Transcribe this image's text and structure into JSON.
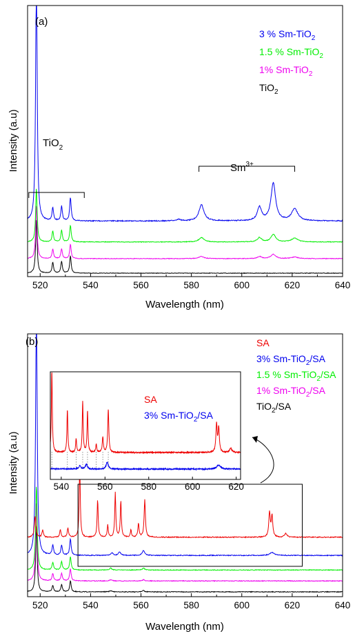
{
  "panels": [
    {
      "panel_label": "(a)",
      "legend": [
        {
          "base": "3 % Sm-TiO",
          "sub": "2",
          "color": "#0000ee"
        },
        {
          "base": "1.5 % Sm-TiO",
          "sub": "2",
          "color": "#00ee00"
        },
        {
          "base": "1% Sm-TiO",
          "sub": "2",
          "color": "#ee00ee"
        },
        {
          "base": "TiO",
          "sub": "2",
          "color": "#000000"
        }
      ],
      "annotations": {
        "tio2": {
          "base": "TiO",
          "sub": "2"
        },
        "sm": {
          "base": "Sm",
          "sup": "3+"
        }
      },
      "bracket_ranges": {
        "tio2": [
          515.5,
          537.5
        ],
        "sm": [
          583,
          621
        ]
      }
    },
    {
      "panel_label": "(b)",
      "legend": [
        {
          "base": "SA",
          "sub": "",
          "suffix": "",
          "color": "#ee0000"
        },
        {
          "base": "3% Sm-TiO",
          "sub": "2",
          "suffix": "/SA",
          "color": "#0000ee"
        },
        {
          "base": "1.5 % Sm-TiO",
          "sub": "2",
          "suffix": "/SA",
          "color": "#00ee00"
        },
        {
          "base": "1% Sm-TiO",
          "sub": "2",
          "suffix": "/SA",
          "color": "#ee00ee"
        },
        {
          "base": "TiO",
          "sub": "2",
          "suffix": "/SA",
          "color": "#000000"
        }
      ],
      "inset": {
        "legend": [
          {
            "base": "SA",
            "sub": "",
            "suffix": "",
            "color": "#ee0000"
          },
          {
            "base": "3% Sm-TiO",
            "sub": "2",
            "suffix": "/SA",
            "color": "#0000ee"
          }
        ],
        "xlim": [
          535,
          622
        ],
        "xticks": [
          540,
          560,
          580,
          600,
          620
        ]
      },
      "zoom_box_range": [
        535,
        624
      ]
    }
  ],
  "chart_data": [
    {
      "type": "line",
      "title": "",
      "xlabel": "Wavelength (nm)",
      "ylabel": "Intensity (a.u)",
      "xlim": [
        515,
        640
      ],
      "xticks": [
        520,
        540,
        560,
        580,
        600,
        620,
        640
      ],
      "y_ticks_shown": false,
      "series": [
        {
          "name": "TiO2",
          "color": "#000000",
          "baseline": 0.0,
          "noise": 0.005,
          "peaks": [
            [
              518.5,
              1.0,
              0.35
            ],
            [
              525,
              0.2,
              0.35
            ],
            [
              528.5,
              0.22,
              0.35
            ],
            [
              532,
              0.32,
              0.35
            ]
          ]
        },
        {
          "name": "1% Sm-TiO2",
          "color": "#ee00ee",
          "baseline": 0.27,
          "noise": 0.006,
          "peaks": [
            [
              518.5,
              1.0,
              0.35
            ],
            [
              525,
              0.18,
              0.35
            ],
            [
              528.5,
              0.18,
              0.35
            ],
            [
              532,
              0.27,
              0.35
            ],
            [
              584,
              0.04,
              1.2
            ],
            [
              607,
              0.04,
              1.0
            ],
            [
              612.5,
              0.08,
              1.1
            ],
            [
              621,
              0.03,
              1.5
            ]
          ]
        },
        {
          "name": "1.5 % Sm-TiO2",
          "color": "#00ee00",
          "baseline": 0.58,
          "noise": 0.006,
          "peaks": [
            [
              518.5,
              1.0,
              0.35
            ],
            [
              525,
              0.2,
              0.35
            ],
            [
              528.5,
              0.22,
              0.35
            ],
            [
              532,
              0.31,
              0.35
            ],
            [
              584,
              0.08,
              1.2
            ],
            [
              607,
              0.08,
              1.0
            ],
            [
              612.5,
              0.14,
              1.1
            ],
            [
              621,
              0.07,
              1.5
            ]
          ]
        },
        {
          "name": "3 % Sm-TiO2",
          "color": "#0000ee",
          "baseline": 0.97,
          "noise": 0.009,
          "peaks": [
            [
              518.5,
              4.9,
              0.35
            ],
            [
              525,
              0.24,
              0.35
            ],
            [
              528.5,
              0.27,
              0.35
            ],
            [
              532,
              0.44,
              0.35
            ],
            [
              575,
              0.03,
              0.8
            ],
            [
              584,
              0.3,
              1.2
            ],
            [
              607,
              0.25,
              1.0
            ],
            [
              612.5,
              0.7,
              1.1
            ],
            [
              621,
              0.22,
              1.5
            ]
          ]
        }
      ]
    },
    {
      "type": "line",
      "title": "",
      "xlabel": "Wavelength (nm)",
      "ylabel": "Intensity (a.u)",
      "xlim": [
        515,
        640
      ],
      "xticks": [
        520,
        540,
        560,
        580,
        600,
        620,
        640
      ],
      "y_ticks_shown": false,
      "series": [
        {
          "name": "TiO2/SA",
          "color": "#000000",
          "baseline": 0.0,
          "noise": 0.006,
          "peaks": [
            [
              518.5,
              1.1,
              0.35
            ],
            [
              525,
              0.1,
              0.35
            ],
            [
              528.5,
              0.12,
              0.35
            ],
            [
              532,
              0.18,
              0.35
            ],
            [
              548,
              0.02,
              0.5
            ],
            [
              561,
              0.02,
              0.5
            ]
          ]
        },
        {
          "name": "1% Sm-TiO2/SA",
          "color": "#ee00ee",
          "baseline": 0.18,
          "noise": 0.006,
          "peaks": [
            [
              518.5,
              1.3,
              0.35
            ],
            [
              525,
              0.12,
              0.35
            ],
            [
              528.5,
              0.13,
              0.35
            ],
            [
              532,
              0.2,
              0.35
            ],
            [
              548,
              0.02,
              0.5
            ],
            [
              561,
              0.02,
              0.5
            ]
          ]
        },
        {
          "name": "1.5 % Sm-TiO2/SA",
          "color": "#00ee00",
          "baseline": 0.36,
          "noise": 0.006,
          "peaks": [
            [
              518.5,
              1.4,
              0.35
            ],
            [
              525,
              0.12,
              0.35
            ],
            [
              528.5,
              0.14,
              0.35
            ],
            [
              532,
              0.22,
              0.35
            ],
            [
              548,
              0.03,
              0.5
            ],
            [
              561,
              0.03,
              0.5
            ]
          ]
        },
        {
          "name": "3% Sm-TiO2/SA",
          "color": "#0000ee",
          "baseline": 0.6,
          "noise": 0.007,
          "peaks": [
            [
              518.5,
              4.3,
              0.35
            ],
            [
              525,
              0.17,
              0.35
            ],
            [
              528.5,
              0.17,
              0.35
            ],
            [
              532,
              0.27,
              0.35
            ],
            [
              548.5,
              0.04,
              0.5
            ],
            [
              551.5,
              0.06,
              0.5
            ],
            [
              561,
              0.08,
              0.6
            ],
            [
              612,
              0.05,
              1.0
            ]
          ]
        },
        {
          "name": "SA",
          "color": "#ee0000",
          "baseline": 0.9,
          "noise": 0.008,
          "peaks": [
            [
              518,
              0.35,
              0.35
            ],
            [
              521,
              0.12,
              0.3
            ],
            [
              528,
              0.12,
              0.3
            ],
            [
              531,
              0.15,
              0.3
            ],
            [
              535.7,
              1.2,
              0.25
            ],
            [
              542.8,
              0.62,
              0.25
            ],
            [
              546.8,
              0.2,
              0.25
            ],
            [
              549.8,
              0.73,
              0.25
            ],
            [
              552,
              0.6,
              0.25
            ],
            [
              556,
              0.12,
              0.25
            ],
            [
              559,
              0.22,
              0.3
            ],
            [
              561.5,
              0.62,
              0.3
            ],
            [
              611,
              0.4,
              0.35
            ],
            [
              612,
              0.35,
              0.35
            ],
            [
              617.5,
              0.06,
              0.6
            ]
          ]
        }
      ]
    }
  ]
}
